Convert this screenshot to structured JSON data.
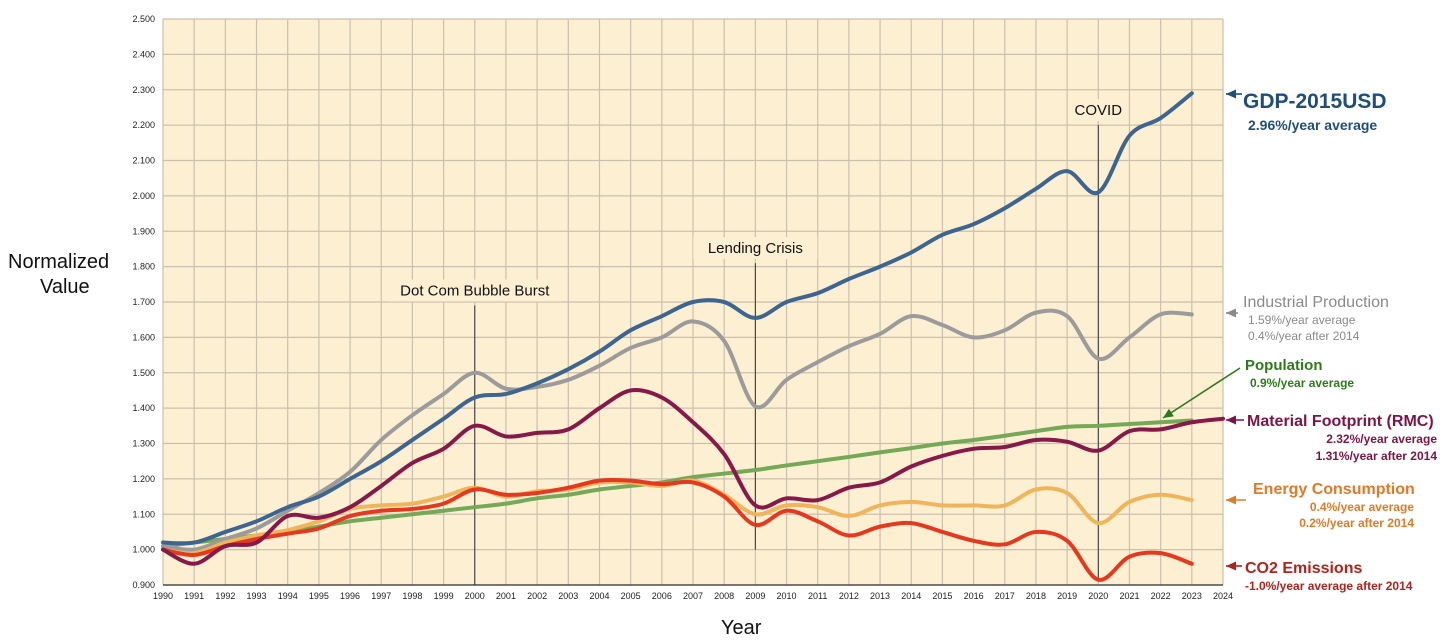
{
  "chart_data": {
    "type": "line",
    "ylabel_lines": [
      "Normalized",
      "Value"
    ],
    "xlabel": "Year",
    "xlim": [
      1990,
      2024
    ],
    "ylim": [
      0.9,
      2.5
    ],
    "grid": true,
    "x_ticks": [
      1990,
      1991,
      1992,
      1993,
      1994,
      1995,
      1996,
      1997,
      1998,
      1999,
      2000,
      2001,
      2002,
      2003,
      2004,
      2005,
      2006,
      2007,
      2008,
      2009,
      2010,
      2011,
      2012,
      2013,
      2014,
      2015,
      2016,
      2017,
      2018,
      2019,
      2020,
      2021,
      2022,
      2023,
      2024
    ],
    "y_ticks": [
      "0.900",
      "1.000",
      "1.100",
      "1.200",
      "1.300",
      "1.400",
      "1.500",
      "1.600",
      "1.700",
      "1.800",
      "1.900",
      "2.000",
      "2.100",
      "2.200",
      "2.300",
      "2.400",
      "2.500"
    ],
    "annotations": [
      {
        "text": "Dot Com Bubble Burst",
        "year": 2000,
        "from": 0.9,
        "to": 1.69
      },
      {
        "text": "Lending Crisis",
        "year": 2009,
        "from": 1.0,
        "to": 1.81
      },
      {
        "text": "COVID",
        "year": 2020,
        "from": 0.92,
        "to": 2.2
      }
    ],
    "series": [
      {
        "name": "GDP-2015USD",
        "color": "#3d6590",
        "label_color": "#1f4e79",
        "notes": [
          "2.96%/year average"
        ],
        "start": 1990,
        "values": [
          1.02,
          1.02,
          1.05,
          1.08,
          1.12,
          1.15,
          1.2,
          1.25,
          1.31,
          1.37,
          1.43,
          1.44,
          1.47,
          1.51,
          1.56,
          1.62,
          1.66,
          1.7,
          1.7,
          1.655,
          1.7,
          1.725,
          1.765,
          1.8,
          1.84,
          1.89,
          1.92,
          1.965,
          2.02,
          2.07,
          2.01,
          2.17,
          2.22,
          2.29
        ]
      },
      {
        "name": "Industrial Production",
        "color": "#9b9b9b",
        "label_color": "#8a8a8a",
        "notes": [
          "1.59%/year average",
          "0.4%/year after 2014"
        ],
        "start": 1990,
        "values": [
          1.01,
          1.0,
          1.03,
          1.06,
          1.11,
          1.16,
          1.22,
          1.31,
          1.38,
          1.44,
          1.5,
          1.455,
          1.46,
          1.48,
          1.52,
          1.57,
          1.6,
          1.645,
          1.59,
          1.405,
          1.48,
          1.53,
          1.575,
          1.61,
          1.66,
          1.635,
          1.6,
          1.62,
          1.67,
          1.66,
          1.54,
          1.6,
          1.665,
          1.665
        ]
      },
      {
        "name": "Population",
        "color": "#74a957",
        "label_color": "#2d7a1a",
        "notes": [
          "0.9%/year average"
        ],
        "start": 1990,
        "values": [
          1.01,
          1.02,
          1.03,
          1.04,
          1.05,
          1.065,
          1.08,
          1.09,
          1.1,
          1.11,
          1.12,
          1.13,
          1.145,
          1.155,
          1.17,
          1.18,
          1.19,
          1.205,
          1.215,
          1.225,
          1.238,
          1.25,
          1.262,
          1.275,
          1.287,
          1.3,
          1.31,
          1.322,
          1.335,
          1.347,
          1.35,
          1.355,
          1.36,
          1.365
        ]
      },
      {
        "name": "Material Footprint (RMC)",
        "color": "#85194a",
        "label_color": "#7d1445",
        "notes": [
          "2.32%/year average",
          "1.31%/year after 2014"
        ],
        "start": 1990,
        "values": [
          1.0,
          0.96,
          1.01,
          1.02,
          1.095,
          1.09,
          1.12,
          1.18,
          1.245,
          1.285,
          1.35,
          1.32,
          1.33,
          1.34,
          1.4,
          1.45,
          1.43,
          1.36,
          1.27,
          1.125,
          1.145,
          1.14,
          1.175,
          1.19,
          1.235,
          1.265,
          1.285,
          1.29,
          1.31,
          1.305,
          1.28,
          1.335,
          1.34,
          1.36,
          1.37
        ]
      },
      {
        "name": "Energy Consumption",
        "color": "#f0b45a",
        "label_color": "#e07a27",
        "notes": [
          "0.4%/year average",
          "0.2%/year after 2014"
        ],
        "start": 1990,
        "values": [
          1.0,
          0.99,
          1.02,
          1.04,
          1.055,
          1.08,
          1.115,
          1.125,
          1.13,
          1.15,
          1.175,
          1.15,
          1.165,
          1.17,
          1.19,
          1.19,
          1.18,
          1.195,
          1.155,
          1.1,
          1.125,
          1.12,
          1.095,
          1.125,
          1.135,
          1.125,
          1.125,
          1.125,
          1.17,
          1.16,
          1.075,
          1.135,
          1.155,
          1.14
        ]
      },
      {
        "name": "CO2 Emissions",
        "color": "#e5391f",
        "label_color": "#b0231c",
        "notes": [
          "-1.0%/year average after 2014"
        ],
        "start": 1990,
        "values": [
          1.0,
          0.985,
          1.01,
          1.03,
          1.045,
          1.06,
          1.095,
          1.11,
          1.115,
          1.13,
          1.17,
          1.155,
          1.16,
          1.175,
          1.195,
          1.195,
          1.185,
          1.19,
          1.15,
          1.07,
          1.11,
          1.08,
          1.04,
          1.065,
          1.075,
          1.05,
          1.025,
          1.015,
          1.05,
          1.025,
          0.915,
          0.98,
          0.99,
          0.96
        ]
      }
    ]
  }
}
